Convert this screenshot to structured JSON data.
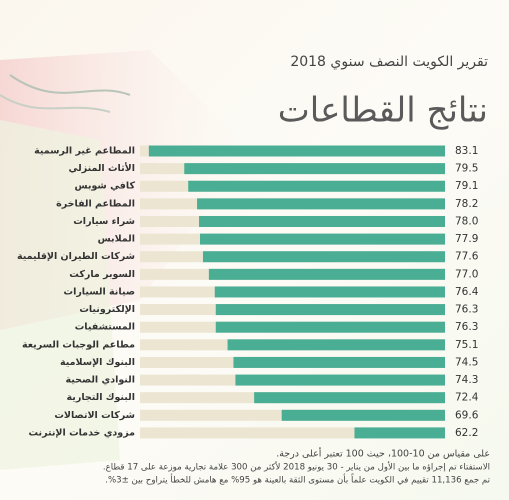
{
  "chart_data": {
    "type": "bar",
    "orientation": "horizontal",
    "subtitle": "تقرير الكويت النصف سنوي 2018",
    "title": "نتائج القطاعات",
    "categories": [
      "المطاعم غير الرسمية",
      "الأثاث المنزلي",
      "كافي شوبس",
      "المطاعم الفاخرة",
      "شراء سيارات",
      "الملابس",
      "شركات الطيران الإقليمية",
      "السوبر ماركت",
      "صيانة السيارات",
      "الإلكترونيات",
      "المستشفيات",
      "مطاعم الوجبات السريعة",
      "البنوك الإسلامية",
      "النوادي الصحية",
      "البنوك التجارية",
      "شركات الاتصالات",
      "مزودي خدمات الإنترنت"
    ],
    "values": [
      83.1,
      79.5,
      79.1,
      78.2,
      78.0,
      77.9,
      77.6,
      77.0,
      76.4,
      76.3,
      76.3,
      75.1,
      74.5,
      74.3,
      72.4,
      69.6,
      62.2
    ],
    "value_labels": [
      "83.1",
      "79.5",
      "79.1",
      "78.2",
      "78.0",
      "77.9",
      "77.6",
      "77.0",
      "76.4",
      "76.3",
      "76.3",
      "75.1",
      "74.5",
      "74.3",
      "72.4",
      "69.6",
      "62.2"
    ],
    "xlim": [
      53,
      84
    ],
    "color": "#4aae94",
    "track_color": "#ebe5d2",
    "notes": [
      "على مقياس من 10-100، حيث 100 تعتبر أعلى درجة.",
      "الاستفتاء تم إجراؤه ما بين الأول من يناير - 30 يونيو 2018 لأكثر من 300 علامة تجارية موزعة على 17 قطاع.",
      "تم جمع 11,136 تقييم في الكويت علماً بأن مستوى الثقة بالعينة هو 95% مع هامش للخطأ يتراوح بين ±3%."
    ]
  }
}
